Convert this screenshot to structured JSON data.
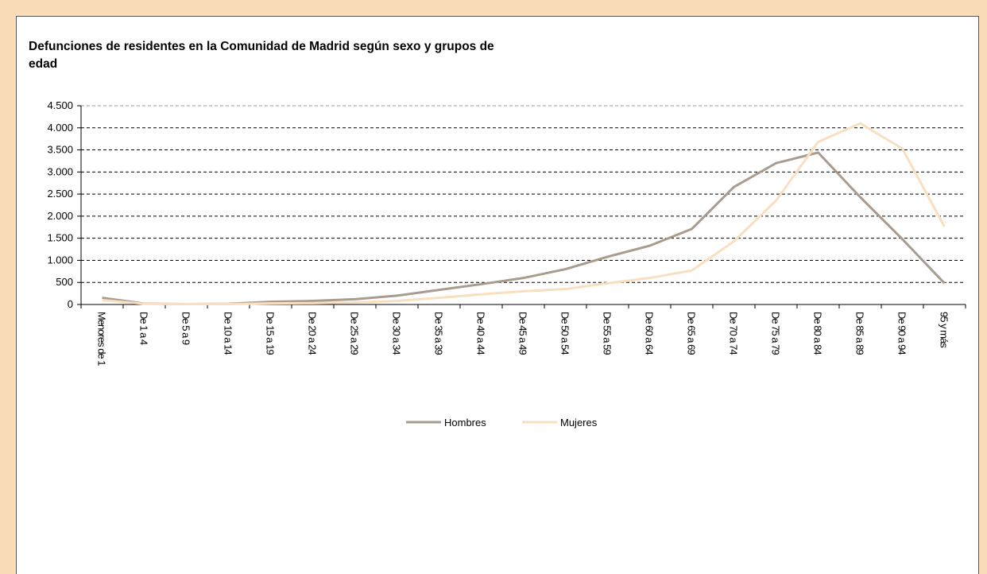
{
  "chart_data": {
    "type": "line",
    "title_lines": [
      "Defunciones de residentes en la Comunidad de Madrid según sexo y grupos de",
      "edad"
    ],
    "categories": [
      "Menores de 1",
      "De 1 a 4",
      "De 5 a 9",
      "De 10 a 14",
      "De 15 a 19",
      "De 20 a 24",
      "De 25 a 29",
      "De 30 a 34",
      "De 35 a 39",
      "De 40 a 44",
      "De 45 a 49",
      "De 50 a 54",
      "De 55 a 59",
      "De 60 a 64",
      "De 65 a 69",
      "De 70 a 74",
      "De 75 a 79",
      "De 80 a 84",
      "De 85 a 89",
      "De 90 a 94",
      "95 y más"
    ],
    "series": [
      {
        "name": "Hombres",
        "color": "#a99b8d",
        "values": [
          150,
          20,
          10,
          15,
          60,
          80,
          120,
          200,
          330,
          460,
          600,
          800,
          1080,
          1330,
          1710,
          2660,
          3200,
          3440,
          2430,
          1480,
          480
        ]
      },
      {
        "name": "Mujeres",
        "color": "#f9dfc0",
        "values": [
          100,
          15,
          8,
          10,
          25,
          30,
          45,
          80,
          150,
          230,
          300,
          350,
          480,
          600,
          770,
          1430,
          2350,
          3680,
          4100,
          3530,
          1760
        ]
      }
    ],
    "ylim": [
      0,
      4500
    ],
    "yticks": [
      0,
      500,
      {
        "value": 1000,
        "label": "1.000"
      },
      {
        "value": 1500,
        "label": "1.500"
      },
      {
        "value": 2000,
        "label": "2.000"
      },
      {
        "value": 2500,
        "label": "2.500"
      },
      {
        "value": 3000,
        "label": "3.000"
      },
      {
        "value": 3500,
        "label": "3.500"
      },
      {
        "value": 4000,
        "label": "4.000"
      },
      {
        "value": 4500,
        "label": "4.500"
      }
    ],
    "grid": true,
    "legend": "bottom"
  }
}
